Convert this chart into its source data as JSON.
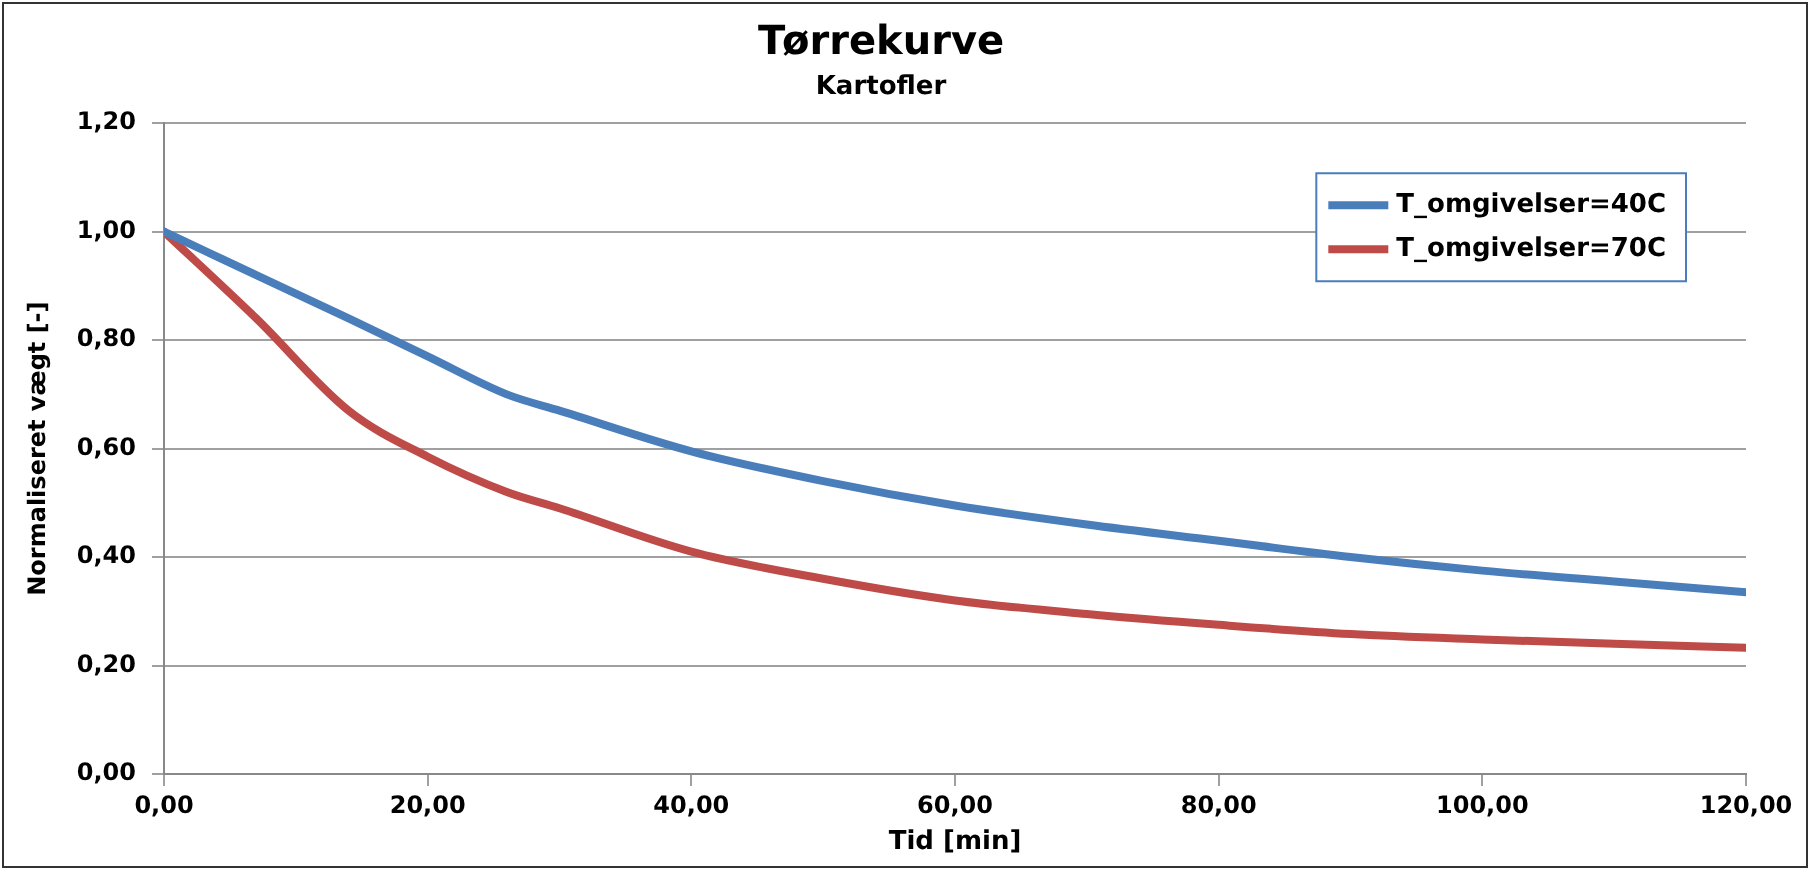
{
  "chart_data": {
    "type": "line",
    "title": "Tørrekurve",
    "subtitle": "Kartofler",
    "xlabel": "Tid [min]",
    "ylabel": "Normaliseret vægt [-]",
    "xlim": [
      0,
      120
    ],
    "xticks": [
      {
        "value": 0,
        "label": "0,00"
      },
      {
        "value": 20,
        "label": "20,00"
      },
      {
        "value": 40,
        "label": "40,00"
      },
      {
        "value": 60,
        "label": "60,00"
      },
      {
        "value": 80,
        "label": "80,00"
      },
      {
        "value": 100,
        "label": "100,00"
      },
      {
        "value": 120,
        "label": "120,00"
      }
    ],
    "ylim": [
      0,
      1.2
    ],
    "yticks": [
      {
        "value": 0,
        "label": "0,00"
      },
      {
        "value": 0.2,
        "label": "0,20"
      },
      {
        "value": 0.4,
        "label": "0,40"
      },
      {
        "value": 0.6,
        "label": "0,60"
      },
      {
        "value": 0.8,
        "label": "0,80"
      },
      {
        "value": 1,
        "label": "1,00"
      },
      {
        "value": 1.2,
        "label": "1,20"
      }
    ],
    "grid": "y",
    "legend": "top right",
    "marker": "none",
    "line_style": "solid",
    "x": [
      0,
      7,
      14,
      20,
      26,
      30,
      40,
      50,
      60,
      70,
      80,
      90,
      100,
      110,
      120
    ],
    "series": [
      {
        "name": "T_omgivelser=40C",
        "color": "#4a7ebb",
        "values": [
          1.0,
          0.92,
          0.84,
          0.77,
          0.7,
          0.67,
          0.595,
          0.54,
          0.495,
          0.46,
          0.43,
          0.4,
          0.375,
          0.355,
          0.335
        ]
      },
      {
        "name": "T_omgivelser=70C",
        "color": "#be4b48",
        "values": [
          1.0,
          0.84,
          0.67,
          0.585,
          0.52,
          0.49,
          0.41,
          0.36,
          0.32,
          0.295,
          0.275,
          0.258,
          0.248,
          0.24,
          0.233
        ]
      }
    ]
  }
}
